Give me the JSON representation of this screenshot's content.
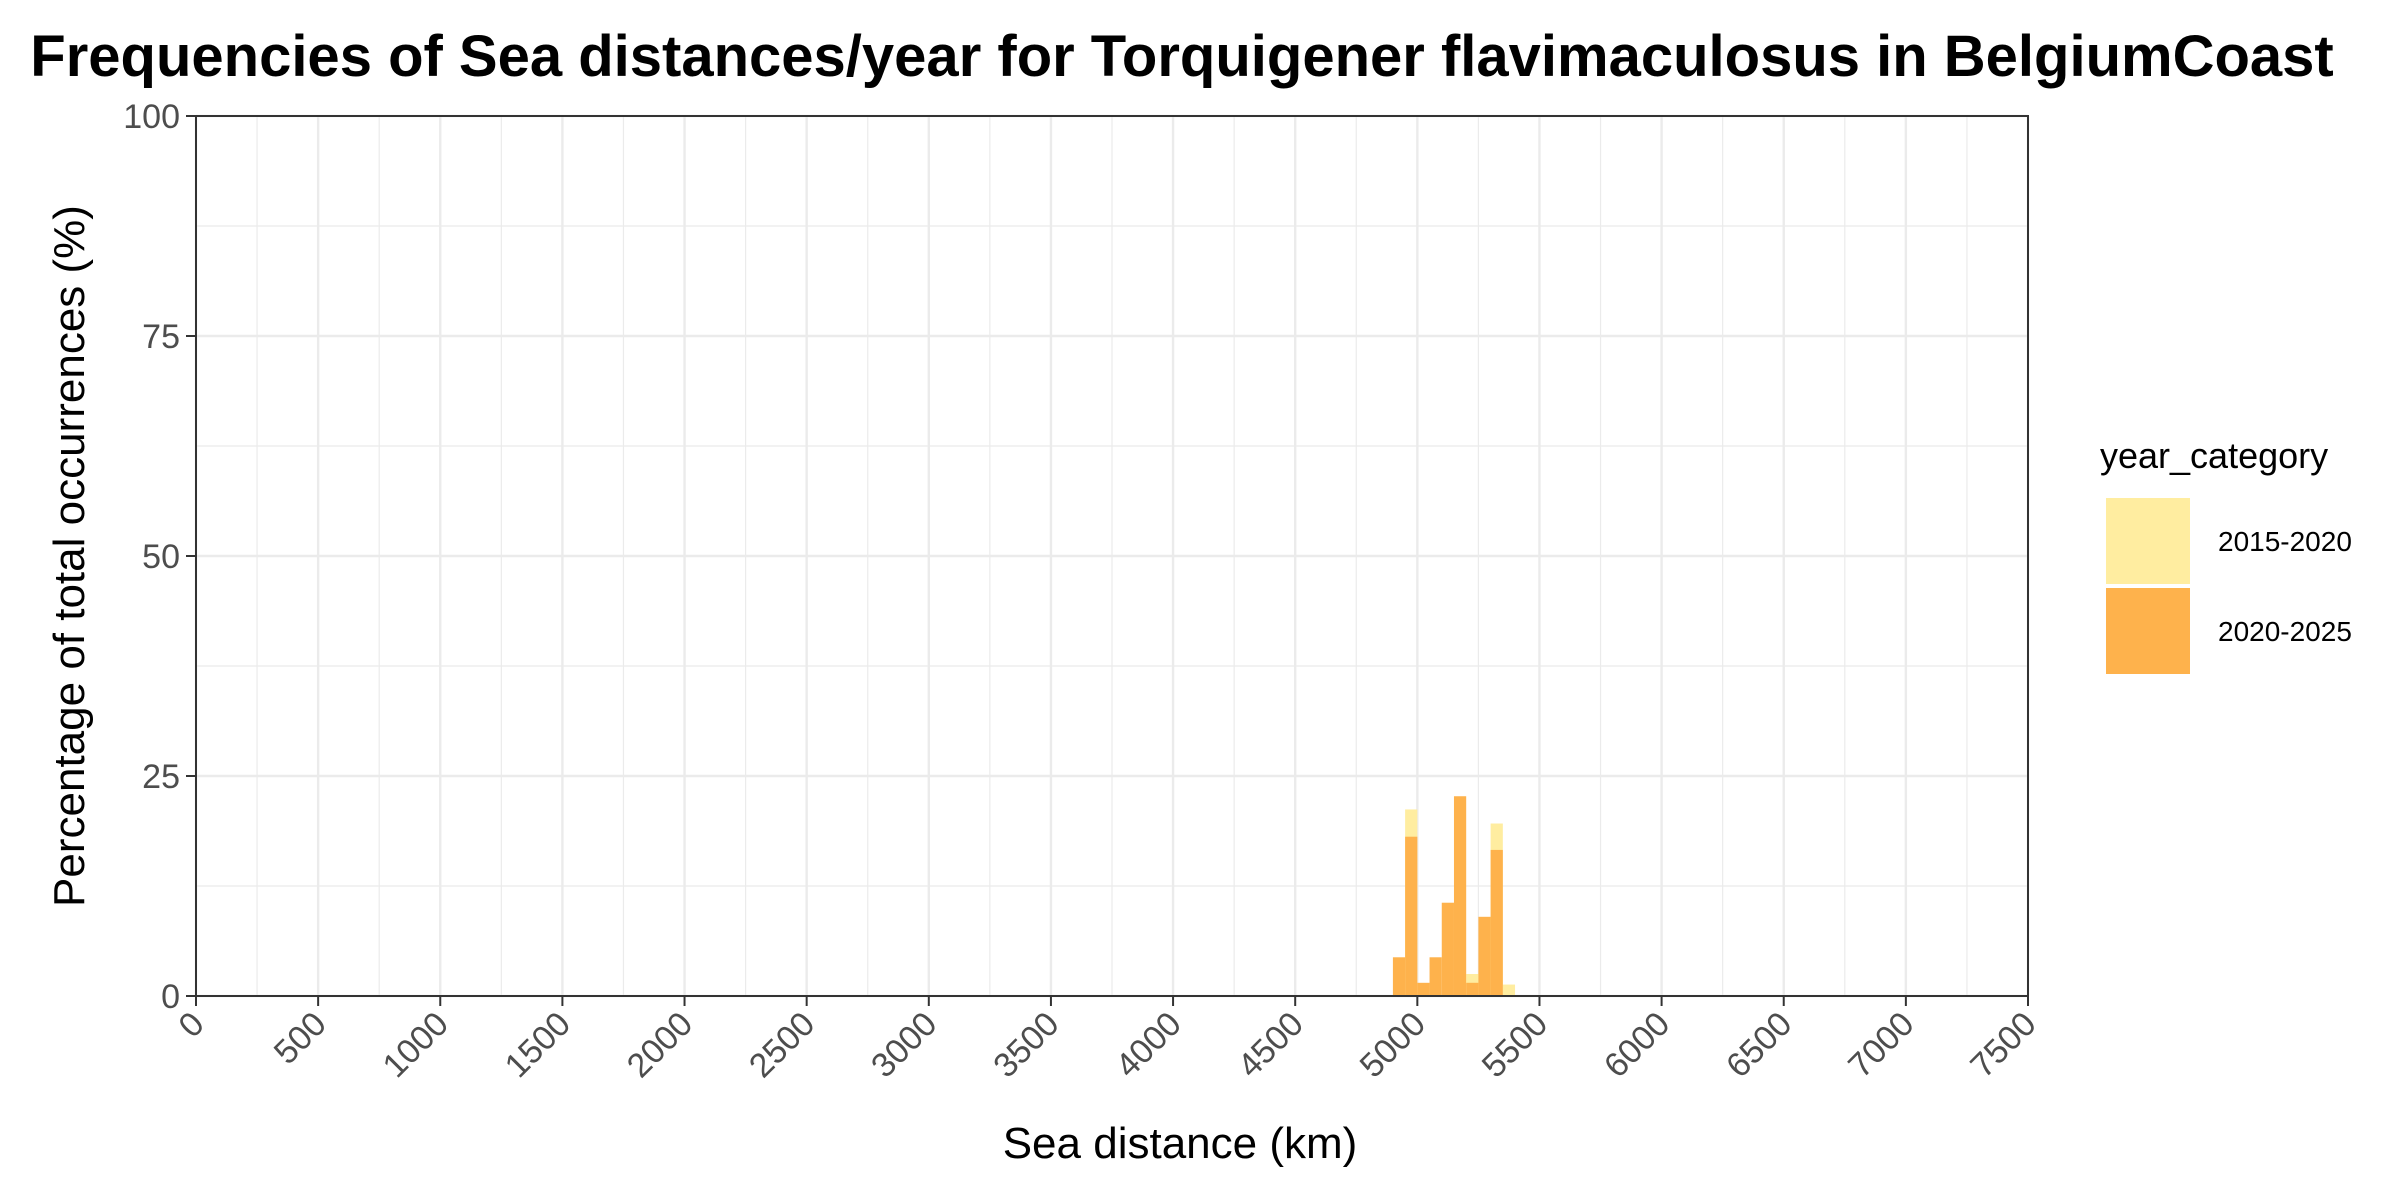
{
  "chart_data": {
    "type": "bar",
    "title": "Frequencies of Sea distances/year for Torquigener flavimaculosus in BelgiumCoast",
    "xlabel": "Sea distance (km)",
    "ylabel": "Percentage of total occurrences (%)",
    "xlim": [
      0,
      7500
    ],
    "ylim": [
      0,
      100
    ],
    "x_ticks": [
      "0",
      "500",
      "1000",
      "1500",
      "2000",
      "2500",
      "3000",
      "3500",
      "4000",
      "4500",
      "5000",
      "5500",
      "6000",
      "6500",
      "7000",
      "7500"
    ],
    "y_ticks": [
      "0",
      "25",
      "50",
      "75",
      "100"
    ],
    "grid": true,
    "bin_width": 50,
    "legend": {
      "title": "year_category",
      "position": "right"
    },
    "series": [
      {
        "name": "2015-2020",
        "color": "#FFEDA0",
        "bins": [
          {
            "x0": 4950,
            "x1": 5000,
            "value": 21.2
          },
          {
            "x0": 5200,
            "x1": 5250,
            "value": 2.5
          },
          {
            "x0": 5300,
            "x1": 5350,
            "value": 19.6
          },
          {
            "x0": 5350,
            "x1": 5400,
            "value": 1.3
          }
        ]
      },
      {
        "name": "2020-2025",
        "color": "#FEB24C",
        "bins": [
          {
            "x0": 4900,
            "x1": 4950,
            "value": 4.4
          },
          {
            "x0": 4950,
            "x1": 5000,
            "value": 18.1
          },
          {
            "x0": 5000,
            "x1": 5050,
            "value": 1.5
          },
          {
            "x0": 5050,
            "x1": 5100,
            "value": 4.4
          },
          {
            "x0": 5100,
            "x1": 5150,
            "value": 10.6
          },
          {
            "x0": 5150,
            "x1": 5200,
            "value": 22.7
          },
          {
            "x0": 5200,
            "x1": 5250,
            "value": 1.5
          },
          {
            "x0": 5250,
            "x1": 5300,
            "value": 9.0
          },
          {
            "x0": 5300,
            "x1": 5350,
            "value": 16.6
          }
        ]
      }
    ]
  }
}
